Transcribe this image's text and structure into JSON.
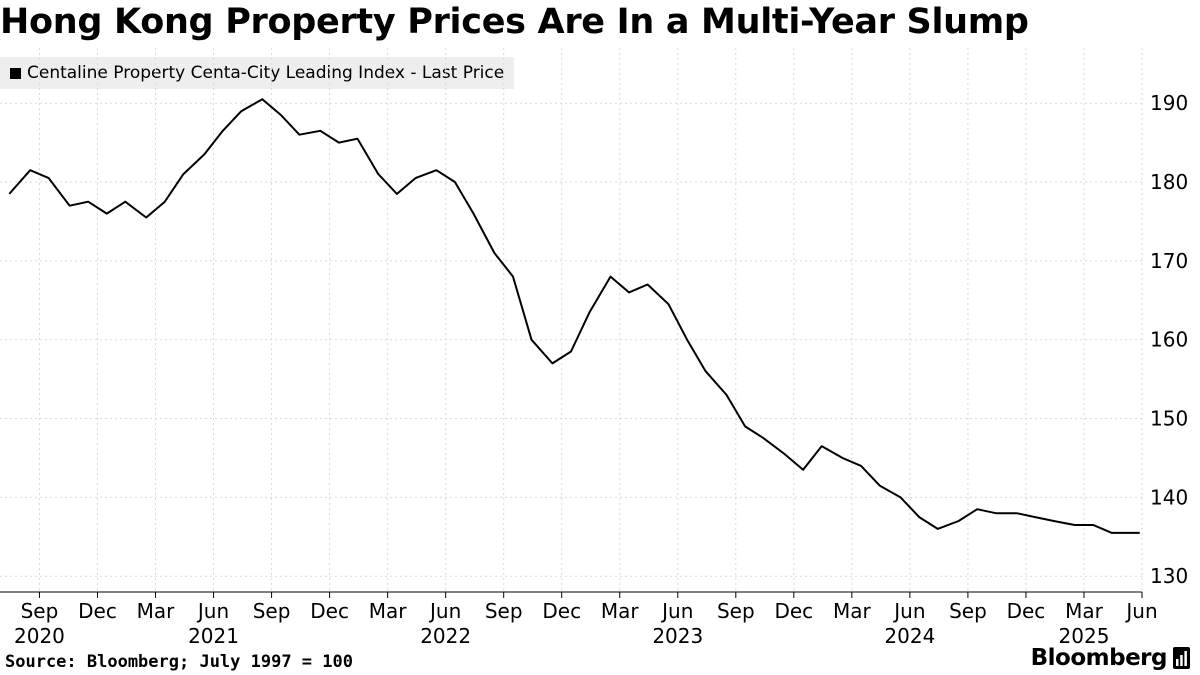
{
  "chart_data": {
    "type": "line",
    "title": "Hong Kong Property Prices Are In a Multi-Year Slump",
    "series": [
      {
        "name": "Centaline Property Centa-City Leading Index - Last Price",
        "color": "#000000",
        "x": [
          2020.54,
          2020.63,
          2020.71,
          2020.8,
          2020.88,
          2020.96,
          2021.04,
          2021.13,
          2021.21,
          2021.29,
          2021.38,
          2021.46,
          2021.54,
          2021.63,
          2021.71,
          2021.79,
          2021.88,
          2021.96,
          2022.04,
          2022.13,
          2022.21,
          2022.29,
          2022.38,
          2022.46,
          2022.54,
          2022.63,
          2022.71,
          2022.79,
          2022.88,
          2022.96,
          2023.04,
          2023.13,
          2023.21,
          2023.29,
          2023.38,
          2023.46,
          2023.54,
          2023.63,
          2023.71,
          2023.79,
          2023.88,
          2023.96,
          2024.04,
          2024.13,
          2024.21,
          2024.29,
          2024.38,
          2024.46,
          2024.54,
          2024.63,
          2024.71,
          2024.79,
          2024.88,
          2024.96,
          2025.04,
          2025.13,
          2025.21,
          2025.29,
          2025.38,
          2025.41
        ],
        "values": [
          178.5,
          181.5,
          180.5,
          177.0,
          177.5,
          176.0,
          177.5,
          175.5,
          177.5,
          181.0,
          183.5,
          186.5,
          189.0,
          190.5,
          188.5,
          186.0,
          186.5,
          185.0,
          185.5,
          181.0,
          178.5,
          180.5,
          181.5,
          180.0,
          176.0,
          171.0,
          168.0,
          160.0,
          157.0,
          158.5,
          163.5,
          168.0,
          166.0,
          167.0,
          164.5,
          160.0,
          156.0,
          153.0,
          149.0,
          147.5,
          145.5,
          143.5,
          146.5,
          145.0,
          144.0,
          141.5,
          140.0,
          137.5,
          136.0,
          137.0,
          138.5,
          138.0,
          138.0,
          137.5,
          137.0,
          136.5,
          136.5,
          135.5,
          135.5,
          135.5
        ]
      }
    ],
    "ylim": [
      128,
      197
    ],
    "yticks": [
      130,
      140,
      150,
      160,
      170,
      180,
      190
    ],
    "xlim": [
      2020.5,
      2025.42
    ],
    "xticks": [
      {
        "value": 2020.67,
        "month": "Sep",
        "year": "2020"
      },
      {
        "value": 2020.92,
        "month": "Dec",
        "year": ""
      },
      {
        "value": 2021.17,
        "month": "Mar",
        "year": ""
      },
      {
        "value": 2021.42,
        "month": "Jun",
        "year": "2021"
      },
      {
        "value": 2021.67,
        "month": "Sep",
        "year": ""
      },
      {
        "value": 2021.92,
        "month": "Dec",
        "year": ""
      },
      {
        "value": 2022.17,
        "month": "Mar",
        "year": ""
      },
      {
        "value": 2022.42,
        "month": "Jun",
        "year": "2022"
      },
      {
        "value": 2022.67,
        "month": "Sep",
        "year": ""
      },
      {
        "value": 2022.92,
        "month": "Dec",
        "year": ""
      },
      {
        "value": 2023.17,
        "month": "Mar",
        "year": ""
      },
      {
        "value": 2023.42,
        "month": "Jun",
        "year": "2023"
      },
      {
        "value": 2023.67,
        "month": "Sep",
        "year": ""
      },
      {
        "value": 2023.92,
        "month": "Dec",
        "year": ""
      },
      {
        "value": 2024.17,
        "month": "Mar",
        "year": ""
      },
      {
        "value": 2024.42,
        "month": "Jun",
        "year": "2024"
      },
      {
        "value": 2024.67,
        "month": "Sep",
        "year": ""
      },
      {
        "value": 2024.92,
        "month": "Dec",
        "year": ""
      },
      {
        "value": 2025.17,
        "month": "Mar",
        "year": "2025"
      },
      {
        "value": 2025.42,
        "month": "Jun",
        "year": ""
      }
    ],
    "grid": true,
    "legend_position": "top-left",
    "y_axis_side": "right"
  },
  "footer": {
    "source": "Source: Bloomberg; July 1997 = 100",
    "brand": "Bloomberg"
  },
  "colors": {
    "line": "#000000",
    "grid": "#d9d9d9",
    "legend_bg": "#eeeeee"
  }
}
